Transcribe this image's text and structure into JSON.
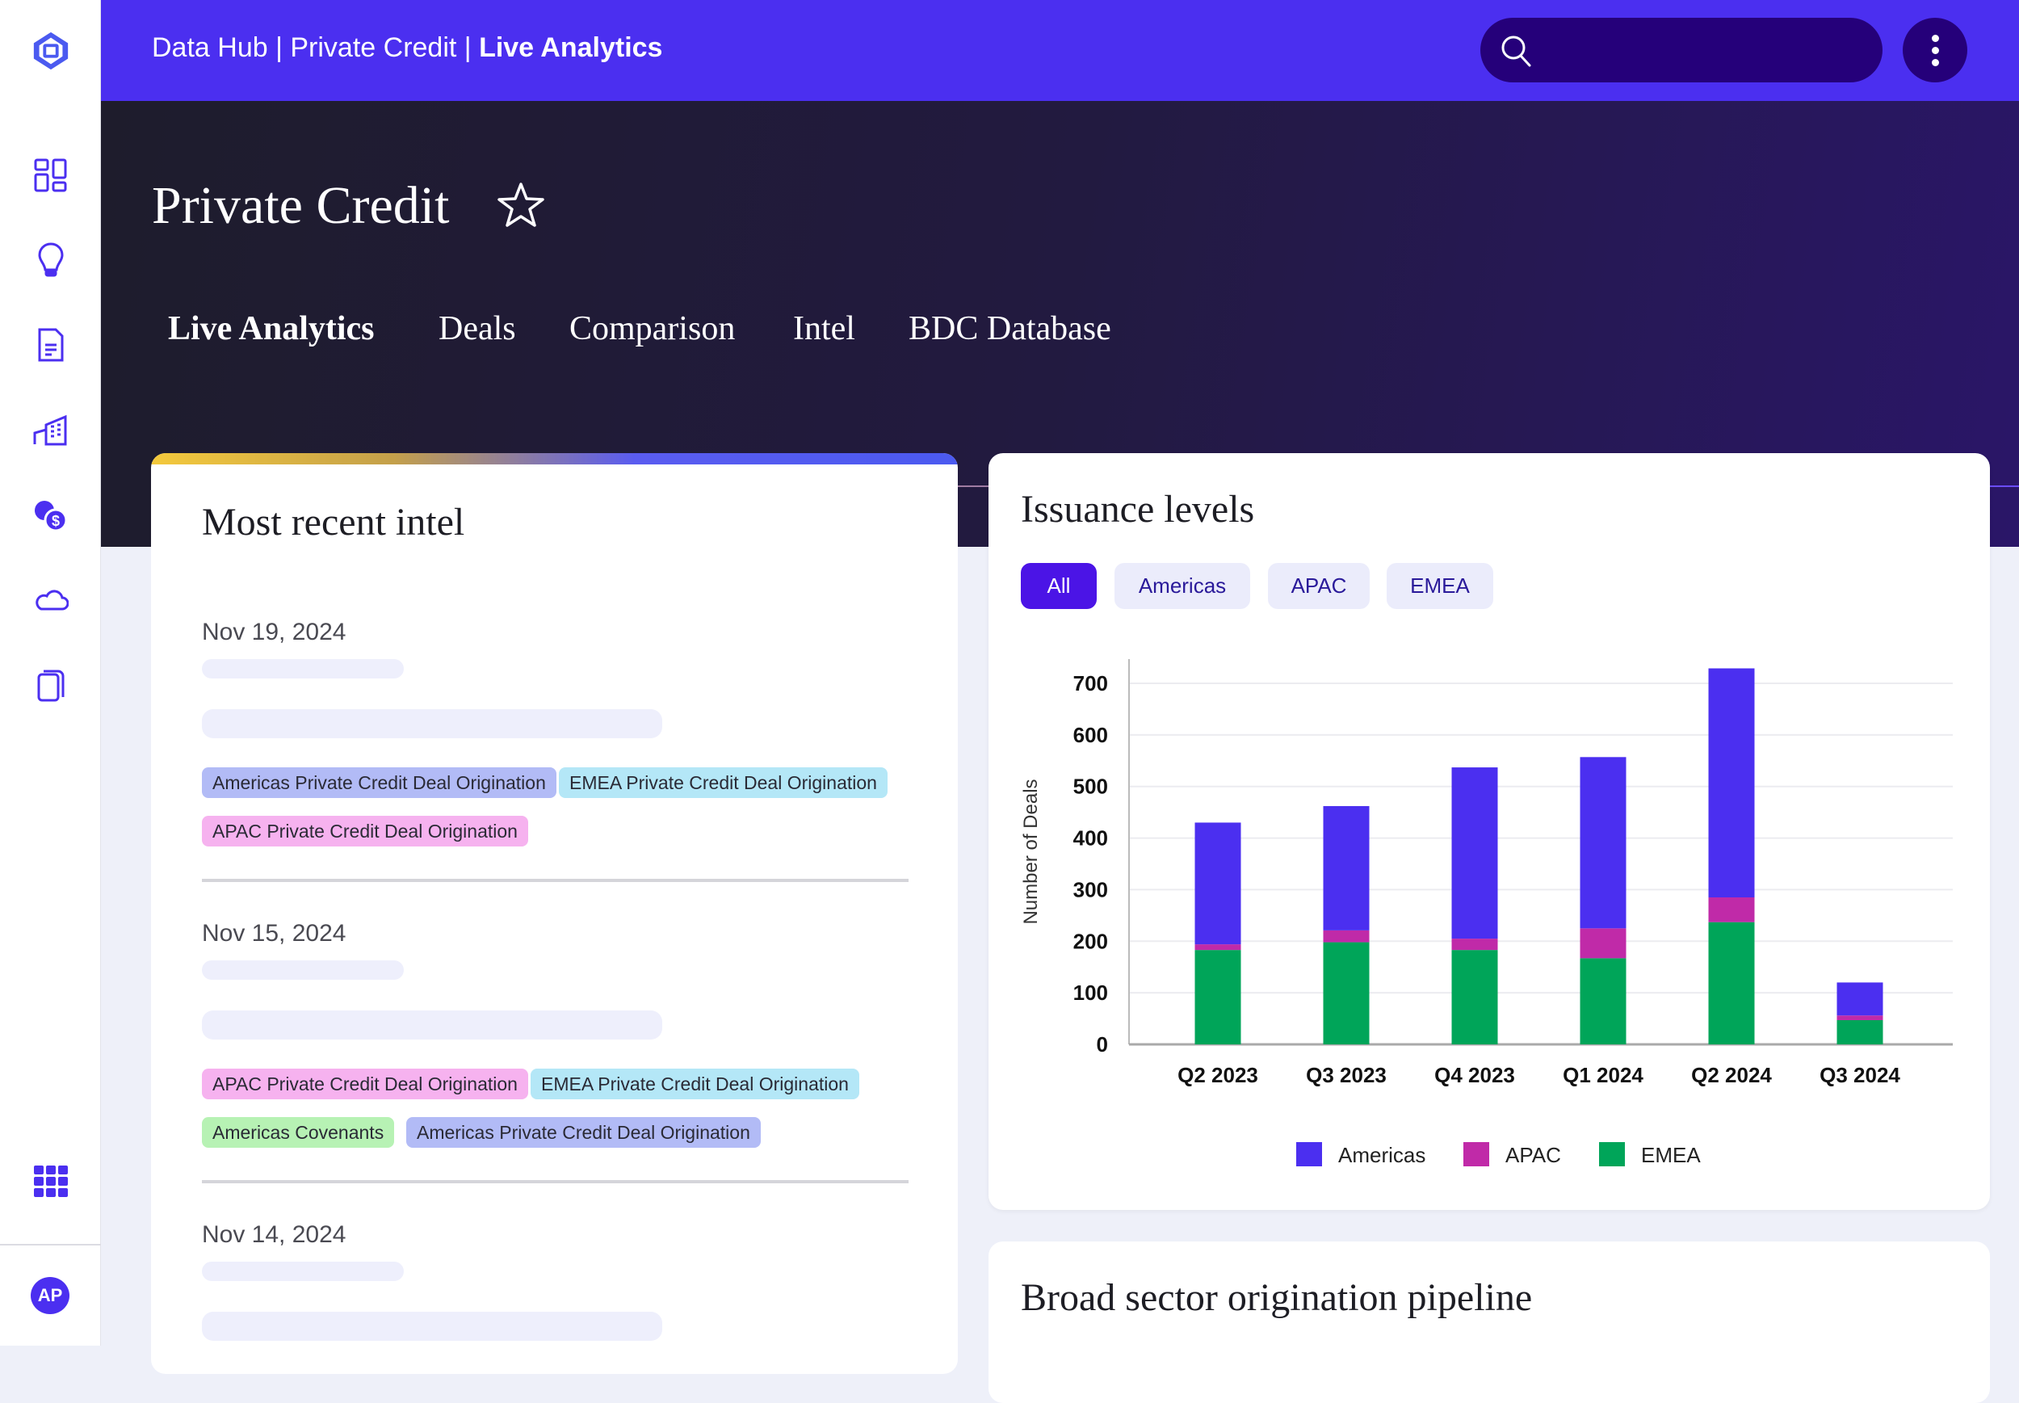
{
  "topbar": {
    "breadcrumb": [
      "Data Hub",
      "| Private Credit |",
      "Live Analytics"
    ],
    "search_placeholder": ""
  },
  "sidebar": {
    "items": [
      "dashboard",
      "insights",
      "documents",
      "companies",
      "currency",
      "cloud",
      "collections"
    ],
    "apps_icon": "grid-icon",
    "avatar": "AP"
  },
  "hero": {
    "title": "Private Credit",
    "tabs": [
      "Live Analytics",
      "Deals",
      "Comparison",
      "Intel",
      "BDC Database"
    ],
    "active_tab": "Live Analytics"
  },
  "intel": {
    "title": "Most recent intel",
    "entries": [
      {
        "date": "Nov 19, 2024",
        "tags": [
          "Americas Private Credit Deal Origination",
          "EMEA Private Credit Deal Origination",
          "APAC Private Credit Deal Origination"
        ]
      },
      {
        "date": "Nov 15, 2024",
        "tags": [
          "APAC Private Credit Deal Origination",
          "EMEA Private Credit Deal Origination",
          "Americas Covenants",
          "Americas Private Credit Deal Origination"
        ]
      },
      {
        "date": "Nov 14, 2024",
        "tags": []
      }
    ]
  },
  "issuance": {
    "title": "Issuance levels",
    "filters": [
      "All",
      "Americas",
      "APAC",
      "EMEA"
    ],
    "active_filter": "All"
  },
  "pipeline": {
    "title": "Broad sector origination pipeline"
  },
  "colors": {
    "accent": "#4b2ff0",
    "americas": "#4b2ff0",
    "apac": "#c02aa8",
    "emea": "#00a559"
  },
  "chart_data": {
    "type": "bar",
    "stacked": true,
    "title": "Issuance levels",
    "xlabel": "",
    "ylabel": "Number of Deals",
    "ylim": [
      0,
      750
    ],
    "yticks": [
      0,
      100,
      200,
      300,
      400,
      500,
      600,
      700
    ],
    "categories": [
      "Q2 2023",
      "Q3 2023",
      "Q4  2023",
      "Q1 2024",
      "Q2 2024",
      "Q3 2024"
    ],
    "series": [
      {
        "name": "EMEA",
        "color": "#00a559",
        "values": [
          183,
          198,
          183,
          167,
          237,
          47
        ]
      },
      {
        "name": "APAC",
        "color": "#c02aa8",
        "values": [
          11,
          23,
          22,
          58,
          48,
          9
        ]
      },
      {
        "name": "Americas",
        "color": "#4b2ff0",
        "values": [
          236,
          241,
          332,
          332,
          444,
          64
        ]
      }
    ],
    "legend": [
      "Americas",
      "APAC",
      "EMEA"
    ],
    "legend_position": "bottom",
    "grid": true
  }
}
